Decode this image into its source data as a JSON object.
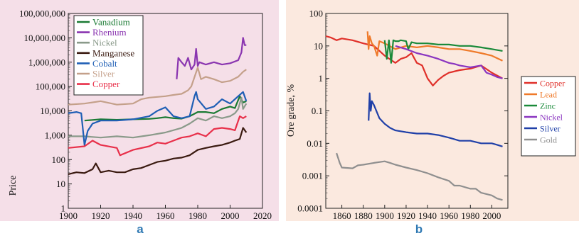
{
  "panel_labels": {
    "a": "a",
    "b": "b"
  },
  "colors": {
    "panel_a_bg": "#f5dfe8",
    "panel_b_bg": "#fbe9df",
    "label_blue": "#2f79b3"
  },
  "chart_data": [
    {
      "type": "line",
      "panel": "a",
      "title": "",
      "xlabel": "",
      "ylabel": "Price",
      "xlim": [
        1900,
        2020
      ],
      "ylim": [
        1,
        100000000
      ],
      "yscale": "log",
      "grid": false,
      "legend_position": "top-center",
      "x_ticks": [
        "1900",
        "1920",
        "1940",
        "1960",
        "1980",
        "2000",
        "2020"
      ],
      "y_ticks": [
        "1",
        "10",
        "100",
        "1,000",
        "10,000",
        "100,000",
        "1,000,000",
        "10,000,000",
        "100,000,000"
      ],
      "series": [
        {
          "name": "Vanadium",
          "color": "#1a7a33",
          "x": [
            1910,
            1920,
            1930,
            1940,
            1950,
            1955,
            1960,
            1965,
            1970,
            1975,
            1980,
            1985,
            1990,
            1995,
            2000,
            2003,
            2006,
            2008,
            2010
          ],
          "y": [
            4000,
            4500,
            4300,
            4500,
            4700,
            5000,
            5500,
            5000,
            4800,
            6000,
            9000,
            9000,
            8000,
            12000,
            15000,
            13000,
            40000,
            22000,
            25000
          ]
        },
        {
          "name": "Rhenium",
          "color": "#8a35b0",
          "x": [
            1967,
            1968,
            1970,
            1972,
            1974,
            1976,
            1978,
            1979,
            1980,
            1981,
            1985,
            1990,
            1995,
            2000,
            2005,
            2007,
            2008,
            2009,
            2010
          ],
          "y": [
            200000,
            1500000,
            1000000,
            700000,
            1500000,
            500000,
            800000,
            3500000,
            700000,
            1000000,
            800000,
            1000000,
            800000,
            900000,
            1200000,
            2500000,
            10000000,
            5000000,
            5000000
          ]
        },
        {
          "name": "Nickel",
          "color": "#8a9a8a",
          "x": [
            1900,
            1910,
            1920,
            1930,
            1940,
            1950,
            1960,
            1970,
            1975,
            1980,
            1985,
            1990,
            1995,
            2000,
            2003,
            2005,
            2007,
            2008,
            2010
          ],
          "y": [
            900,
            900,
            800,
            900,
            800,
            1000,
            1300,
            2000,
            3000,
            5000,
            4000,
            6000,
            5000,
            6000,
            8000,
            12000,
            35000,
            12000,
            20000
          ]
        },
        {
          "name": "Manganese",
          "color": "#3a1a10",
          "x": [
            1900,
            1905,
            1910,
            1915,
            1917,
            1920,
            1925,
            1930,
            1935,
            1940,
            1945,
            1950,
            1955,
            1960,
            1965,
            1970,
            1975,
            1980,
            1985,
            1990,
            1995,
            2000,
            2003,
            2006,
            2008,
            2010
          ],
          "y": [
            25,
            30,
            28,
            40,
            70,
            30,
            35,
            30,
            30,
            40,
            45,
            60,
            80,
            90,
            110,
            120,
            150,
            250,
            300,
            350,
            400,
            500,
            600,
            700,
            2000,
            1300
          ]
        },
        {
          "name": "Cobalt",
          "color": "#1f5fb5",
          "x": [
            1900,
            1905,
            1908,
            1910,
            1912,
            1915,
            1920,
            1930,
            1940,
            1950,
            1955,
            1960,
            1965,
            1970,
            1975,
            1978,
            1979,
            1980,
            1985,
            1990,
            1995,
            2000,
            2005,
            2008,
            2010
          ],
          "y": [
            8000,
            9000,
            8000,
            400,
            1500,
            3000,
            4000,
            4000,
            4500,
            6000,
            10000,
            14000,
            6000,
            5000,
            6000,
            40000,
            60000,
            30000,
            12000,
            15000,
            30000,
            20000,
            40000,
            60000,
            25000
          ]
        },
        {
          "name": "Silver",
          "color": "#c4a08a",
          "x": [
            1900,
            1910,
            1920,
            1930,
            1940,
            1945,
            1950,
            1960,
            1965,
            1970,
            1974,
            1976,
            1980,
            1982,
            1985,
            1990,
            1995,
            2000,
            2005,
            2008,
            2010
          ],
          "y": [
            18000,
            20000,
            25000,
            18000,
            20000,
            30000,
            35000,
            40000,
            45000,
            50000,
            70000,
            100000,
            600000,
            200000,
            250000,
            200000,
            150000,
            170000,
            250000,
            400000,
            500000
          ]
        },
        {
          "name": "Copper",
          "color": "#e8304a",
          "x": [
            1900,
            1910,
            1915,
            1920,
            1930,
            1932,
            1940,
            1950,
            1955,
            1960,
            1965,
            1970,
            1975,
            1980,
            1985,
            1990,
            1995,
            2000,
            2003,
            2006,
            2008,
            2010
          ],
          "y": [
            300,
            350,
            600,
            400,
            300,
            150,
            250,
            350,
            500,
            450,
            600,
            800,
            900,
            1200,
            900,
            1800,
            2000,
            1800,
            1600,
            6000,
            5000,
            6000
          ]
        }
      ]
    },
    {
      "type": "line",
      "panel": "b",
      "title": "",
      "xlabel": "",
      "ylabel": "Ore grade, %",
      "xlim": [
        1845,
        2015
      ],
      "ylim": [
        0.0001,
        100
      ],
      "yscale": "log",
      "grid": false,
      "legend_position": "outside-right",
      "x_ticks": [
        "1860",
        "1880",
        "1900",
        "1920",
        "1940",
        "1960",
        "1980",
        "2000"
      ],
      "y_ticks": [
        "0.0001",
        "0.001",
        "0.01",
        "0.1",
        "1",
        "10",
        "100"
      ],
      "series": [
        {
          "name": "Copper",
          "color": "#e0302a",
          "x": [
            1845,
            1850,
            1855,
            1860,
            1870,
            1880,
            1890,
            1900,
            1910,
            1915,
            1920,
            1925,
            1930,
            1935,
            1940,
            1945,
            1950,
            1955,
            1960,
            1970,
            1980,
            1990,
            2000,
            2010
          ],
          "y": [
            20,
            18,
            15,
            17,
            15,
            12,
            10,
            5,
            3,
            4,
            4.5,
            6,
            3,
            2.5,
            1,
            0.6,
            0.9,
            1.2,
            1.5,
            1.8,
            2,
            2.5,
            1.5,
            1
          ]
        },
        {
          "name": "Lead",
          "color": "#ef7a2a",
          "x": [
            1884,
            1885,
            1886,
            1888,
            1890,
            1893,
            1895,
            1900,
            1910,
            1920,
            1930,
            1940,
            1950,
            1960,
            1970,
            1980,
            1990,
            2000,
            2010
          ],
          "y": [
            28,
            8,
            20,
            12,
            10,
            5,
            14,
            12,
            8,
            10,
            9,
            10,
            9,
            8,
            8,
            7,
            6,
            5,
            3.5
          ]
        },
        {
          "name": "Zinc",
          "color": "#1a8a3a",
          "x": [
            1900,
            1902,
            1904,
            1906,
            1908,
            1910,
            1913,
            1915,
            1920,
            1922,
            1925,
            1930,
            1940,
            1950,
            1960,
            1970,
            1980,
            1990,
            2000,
            2010
          ],
          "y": [
            15,
            4,
            15,
            3,
            15,
            14,
            14,
            15,
            14,
            8,
            13,
            12,
            12,
            11,
            11,
            10,
            10,
            9,
            8,
            7
          ]
        },
        {
          "name": "Nickel",
          "color": "#8a35c0",
          "x": [
            1910,
            1920,
            1930,
            1940,
            1950,
            1960,
            1965,
            1970,
            1980,
            1990,
            1995,
            2000,
            2005,
            2010
          ],
          "y": [
            10,
            8,
            6,
            5,
            4,
            3,
            2.8,
            2.5,
            2.2,
            2.5,
            1.5,
            1.3,
            1.1,
            1
          ]
        },
        {
          "name": "Silver",
          "color": "#2040a8",
          "x": [
            1885,
            1886,
            1887,
            1888,
            1890,
            1895,
            1900,
            1905,
            1910,
            1920,
            1930,
            1940,
            1950,
            1960,
            1970,
            1980,
            1990,
            2000,
            2005,
            2010
          ],
          "y": [
            0.05,
            0.35,
            0.1,
            0.2,
            0.15,
            0.06,
            0.04,
            0.03,
            0.025,
            0.022,
            0.02,
            0.02,
            0.018,
            0.015,
            0.012,
            0.012,
            0.01,
            0.01,
            0.009,
            0.008
          ]
        },
        {
          "name": "Gold",
          "color": "#8f8f8f",
          "x": [
            1855,
            1858,
            1860,
            1870,
            1875,
            1880,
            1890,
            1900,
            1905,
            1910,
            1920,
            1930,
            1940,
            1950,
            1960,
            1965,
            1970,
            1980,
            1985,
            1990,
            2000,
            2005,
            2010
          ],
          "y": [
            0.005,
            0.0025,
            0.0018,
            0.0017,
            0.0021,
            0.0022,
            0.0025,
            0.0028,
            0.0025,
            0.0022,
            0.0018,
            0.0015,
            0.0012,
            0.0009,
            0.0007,
            0.0005,
            0.0005,
            0.0004,
            0.0004,
            0.0003,
            0.00025,
            0.0002,
            0.00018
          ]
        }
      ]
    }
  ]
}
